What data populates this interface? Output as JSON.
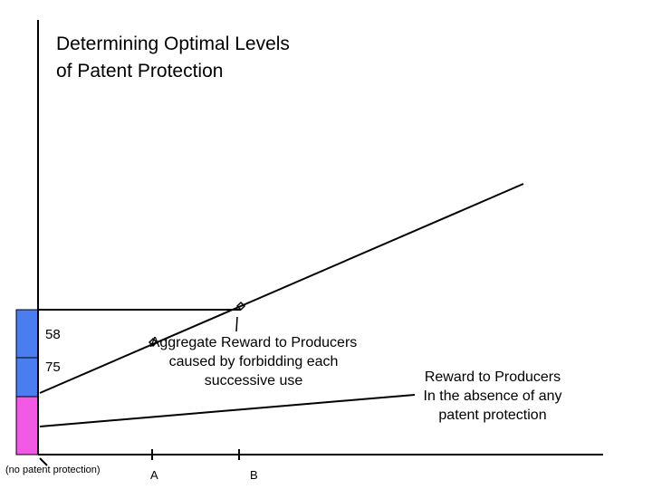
{
  "title": {
    "line1": "Determining Optimal Levels",
    "line2": "of Patent Protection"
  },
  "bar_values": [
    "58",
    "75"
  ],
  "annotations": {
    "aggregate": [
      "Aggregate Reward to Producers",
      "caused by forbidding each",
      "successive use"
    ],
    "no_protection": [
      "Reward to Producers",
      "In the absence of any",
      "patent protection"
    ]
  },
  "x_axis": {
    "origin_label": "(no patent protection)",
    "tick_a": "A",
    "tick_b": "B"
  },
  "colors": {
    "blue_bar": "#4a7ef0",
    "pink_bar": "#f25ae6",
    "line": "#000000"
  }
}
